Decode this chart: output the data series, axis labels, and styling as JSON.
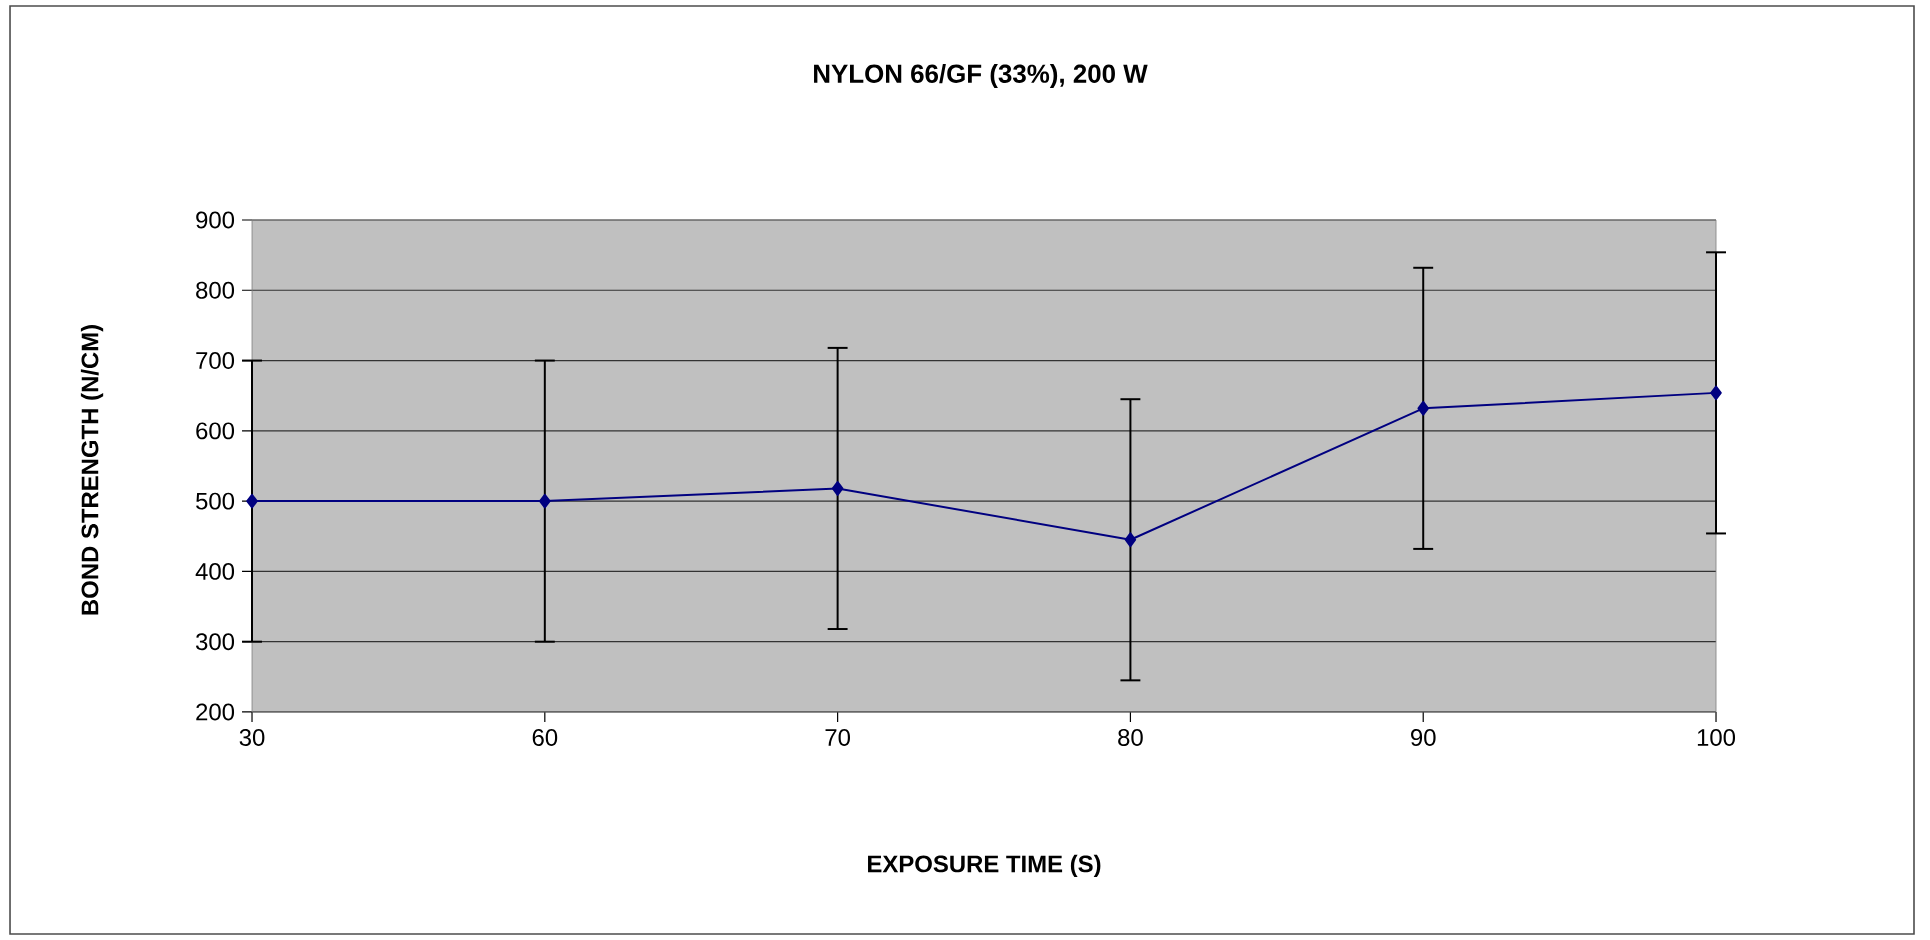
{
  "chart_data": {
    "type": "line",
    "title": "NYLON 66/GF (33%), 200 W",
    "xlabel": "EXPOSURE TIME (S)",
    "ylabel": "BOND STRENGTH (N/CM)",
    "categories": [
      "30",
      "60",
      "70",
      "80",
      "90",
      "100"
    ],
    "series": [
      {
        "color": "#000080",
        "values": [
          500,
          500,
          518,
          445,
          632,
          654
        ],
        "errors": [
          200,
          200,
          200,
          200,
          200,
          200
        ]
      }
    ],
    "ylim": [
      200,
      900
    ],
    "yticks": [
      200,
      300,
      400,
      500,
      600,
      700,
      800,
      900
    ],
    "grid": "y",
    "marker": "diamond",
    "line_style": "solid"
  }
}
